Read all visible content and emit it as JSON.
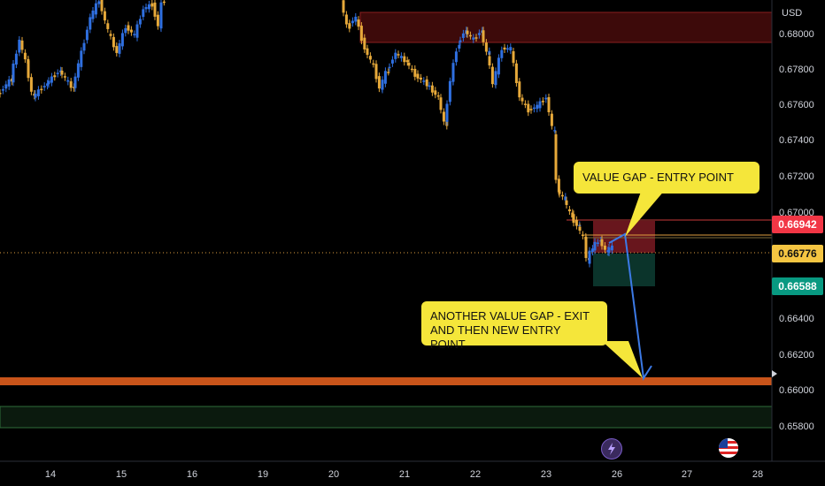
{
  "chart_data": {
    "type": "candlestick",
    "currency": "USD",
    "ylim": [
      0.6571,
      0.6862
    ],
    "y_ticks": [
      "0.68000",
      "0.67800",
      "0.67600",
      "0.67400",
      "0.67200",
      "0.67000",
      "0.66400",
      "0.66200",
      "0.66000",
      "0.65800"
    ],
    "x_ticks": [
      "14",
      "15",
      "16",
      "19",
      "20",
      "21",
      "22",
      "23",
      "26",
      "27",
      "28"
    ],
    "price_tags": {
      "entry": "0.66942",
      "current": "0.66776",
      "target": "0.66588"
    },
    "zones": {
      "supply_top": [
        0.6795,
        0.681
      ],
      "entry_gap": [
        0.6669,
        0.6695
      ],
      "target_box": [
        0.6659,
        0.6678
      ],
      "support_line": [
        0.6604,
        0.6607
      ],
      "demand_bottom": [
        0.6579,
        0.659
      ]
    },
    "annotations": {
      "entry_note": "VALUE GAP - ENTRY POINT",
      "exit_note_line1": "ANOTHER VALUE GAP - EXIT",
      "exit_note_line2": "AND THEN NEW ENTRY POINT"
    },
    "colors": {
      "bull": "#2f6fe0",
      "bear": "#e6a93a",
      "supply_zone": "#5a0d0d",
      "support": "#c8541a",
      "demand_zone": "#0b1f10",
      "tag_red": "#f23645",
      "tag_yellow": "#f5c542",
      "tag_green": "#089981",
      "arrow": "#3c7ae6"
    }
  }
}
